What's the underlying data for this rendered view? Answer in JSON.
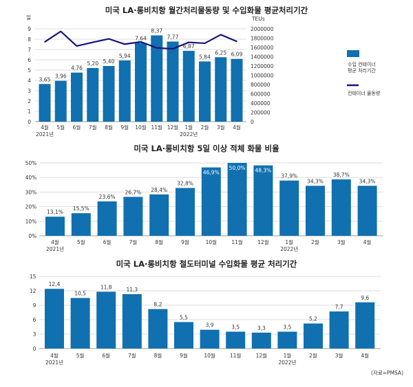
{
  "colors": {
    "bar": "#1070b0",
    "line": "#16127a",
    "grid": "#dddddd"
  },
  "source": "(자료=PMSA)",
  "chart_data": [
    {
      "type": "bar+line",
      "title": "미국 LA·롱비치항 월간처리물동량 및 수입화물 평균처리기간",
      "ylabel": "일",
      "y2label": "TEUs",
      "ylim": [
        0,
        9
      ],
      "y2lim": [
        0,
        2000000
      ],
      "yticks": [
        "0",
        "1",
        "2",
        "3",
        "4",
        "5",
        "6",
        "7",
        "8",
        "9"
      ],
      "y2ticks": [
        "0",
        "200000",
        "400000",
        "600000",
        "800000",
        "1000000",
        "1200000",
        "1400000",
        "1600000",
        "1800000",
        "2000000"
      ],
      "categories": [
        "4월",
        "5월",
        "6월",
        "7월",
        "8월",
        "9월",
        "10월",
        "11월",
        "12월",
        "1월",
        "2월",
        "3월",
        "4월"
      ],
      "year_labels": {
        "0": "2021년",
        "9": "2022년"
      },
      "series": [
        {
          "name": "수입 컨테이너 평균 처리기간",
          "legend_lines": [
            "수입 컨테이너",
            "평균 처리기간"
          ],
          "type": "bar",
          "values": [
            3.65,
            3.96,
            4.76,
            5.2,
            5.4,
            5.94,
            7.64,
            8.37,
            7.77,
            6.87,
            5.84,
            6.25,
            6.09
          ],
          "labels": [
            "3,65",
            "3,96",
            "4,76",
            "5,20",
            "5,40",
            "5,94",
            "7,64",
            "8,37",
            "7,77",
            "6,87",
            "5,84",
            "6,25",
            "6,09"
          ]
        },
        {
          "name": "컨테이너 물동량",
          "legend_lines": [
            "컨테이너 물동량"
          ],
          "type": "line",
          "axis": "right",
          "values": [
            1720000,
            1945000,
            1630000,
            1710000,
            1785000,
            1670000,
            1720000,
            1590000,
            1570000,
            1710000,
            1690000,
            1875000,
            1730000
          ]
        }
      ],
      "legend": "right",
      "grid": true
    },
    {
      "type": "bar",
      "title": "미국 LA·롱비치항 5일 이상 적체 화물 비율",
      "ylim": [
        0,
        50
      ],
      "yticks": [
        "0%",
        "10%",
        "20%",
        "30%",
        "40%",
        "50%"
      ],
      "categories": [
        "4월",
        "5월",
        "6월",
        "7월",
        "8월",
        "9월",
        "10월",
        "11월",
        "12월",
        "1월",
        "2월",
        "3월",
        "4월"
      ],
      "year_labels": {
        "0": "2021년",
        "9": "2022년"
      },
      "values": [
        13.1,
        15.5,
        23.6,
        26.7,
        28.4,
        32.8,
        46.9,
        50.0,
        48.3,
        37.9,
        34.3,
        38.7,
        34.3
      ],
      "labels": [
        "13,1%",
        "15,5%",
        "23,6%",
        "26,7%",
        "28,4%",
        "32,8%",
        "46,9%",
        "50,0%",
        "48,3%",
        "37,9%",
        "34,3%",
        "38,7%",
        "34,3%"
      ],
      "grid": true
    },
    {
      "type": "bar",
      "title": "미국 LA·롱비치항 철도터미널 수입화물 평균 처리기간",
      "ylim": [
        0,
        15
      ],
      "yticks": [
        "0",
        "3",
        "6",
        "9",
        "12",
        "15"
      ],
      "categories": [
        "4월",
        "5월",
        "6월",
        "7월",
        "8월",
        "9월",
        "10월",
        "11월",
        "12월",
        "1월",
        "2월",
        "3월",
        "4월"
      ],
      "year_labels": {
        "0": "2021년",
        "9": "2022년"
      },
      "values": [
        12.4,
        10.5,
        11.8,
        11.3,
        8.2,
        5.5,
        3.9,
        3.5,
        3.3,
        3.5,
        5.2,
        7.7,
        9.6
      ],
      "labels": [
        "12,4",
        "10,5",
        "11,8",
        "11,3",
        "8,2",
        "5,5",
        "3,9",
        "3,5",
        "3,3",
        "3,5",
        "5,2",
        "7,7",
        "9,6"
      ],
      "grid": true
    }
  ]
}
